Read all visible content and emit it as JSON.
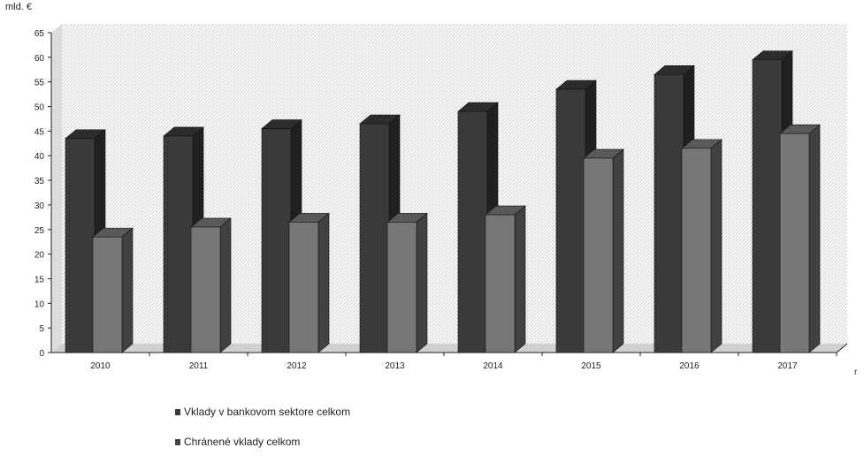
{
  "chart_data": {
    "type": "bar",
    "ylabel": "mld. €",
    "xlabel": "r",
    "categories": [
      "2010",
      "2011",
      "2012",
      "2013",
      "2014",
      "2015",
      "2016",
      "2017"
    ],
    "series": [
      {
        "name": "Vklady v bankovom sektore celkom",
        "values": [
          43.5,
          44,
          45.5,
          46.5,
          49,
          53.5,
          56.5,
          59.5
        ],
        "color": "#3a3a3a"
      },
      {
        "name": "Chránené vklady celkom",
        "values": [
          23.5,
          25.5,
          26.5,
          26.5,
          28,
          39.5,
          41.5,
          44.5
        ],
        "color": "#777777"
      }
    ],
    "ylim": [
      0,
      65
    ],
    "yticks": [
      0,
      5,
      10,
      15,
      20,
      25,
      30,
      35,
      40,
      45,
      50,
      55,
      60,
      65
    ],
    "grid": false,
    "legend_position": "bottom-left",
    "style": "3d"
  }
}
